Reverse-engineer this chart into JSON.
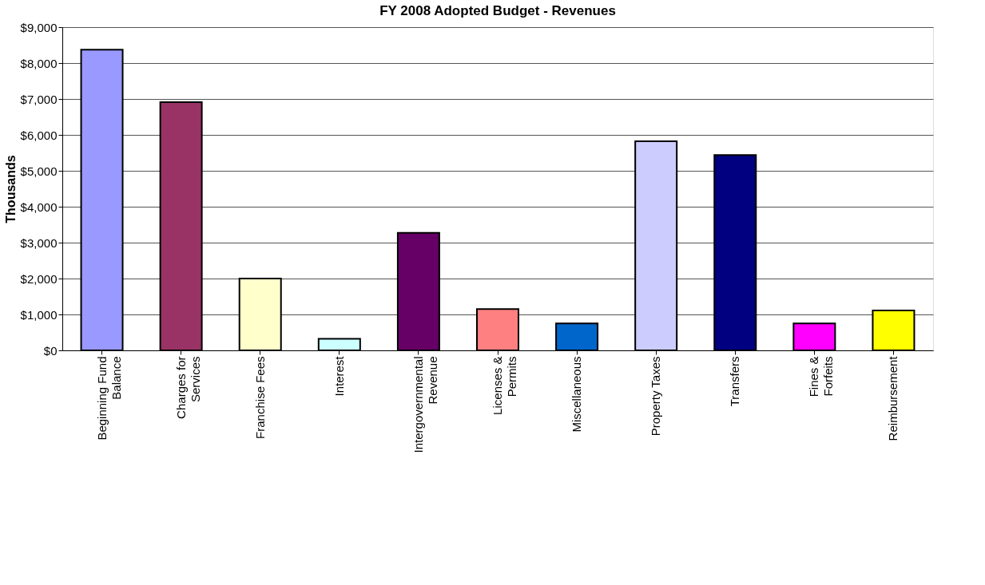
{
  "chart_data": {
    "type": "bar",
    "title": "FY 2008 Adopted Budget - Revenues",
    "ylabel": "Thousands",
    "categories": [
      "Beginning Fund Balance",
      "Charges for Services",
      "Franchise Fees",
      "Interest",
      "Intergovernmental Revenue",
      "Licenses & Permits",
      "Miscellaneous",
      "Property Taxes",
      "Transfers",
      "Fines & Forfeits",
      "Reimbursement"
    ],
    "values": [
      8370,
      6910,
      2000,
      320,
      3270,
      1150,
      750,
      5820,
      5440,
      750,
      1110
    ],
    "colors": [
      "#9999ff",
      "#993366",
      "#ffffcc",
      "#ccffff",
      "#660066",
      "#ff8080",
      "#0066cc",
      "#ccccff",
      "#000080",
      "#ff00ff",
      "#ffff00"
    ],
    "ylim": [
      0,
      9000
    ],
    "yticks": [
      {
        "value": 0,
        "label": "$0"
      },
      {
        "value": 1000,
        "label": "$1,000"
      },
      {
        "value": 2000,
        "label": "$2,000"
      },
      {
        "value": 3000,
        "label": "$3,000"
      },
      {
        "value": 4000,
        "label": "$4,000"
      },
      {
        "value": 5000,
        "label": "$5,000"
      },
      {
        "value": 6000,
        "label": "$6,000"
      },
      {
        "value": 7000,
        "label": "$7,000"
      },
      {
        "value": 8000,
        "label": "$8,000"
      },
      {
        "value": 9000,
        "label": "$9,000"
      }
    ],
    "grid": "y"
  }
}
